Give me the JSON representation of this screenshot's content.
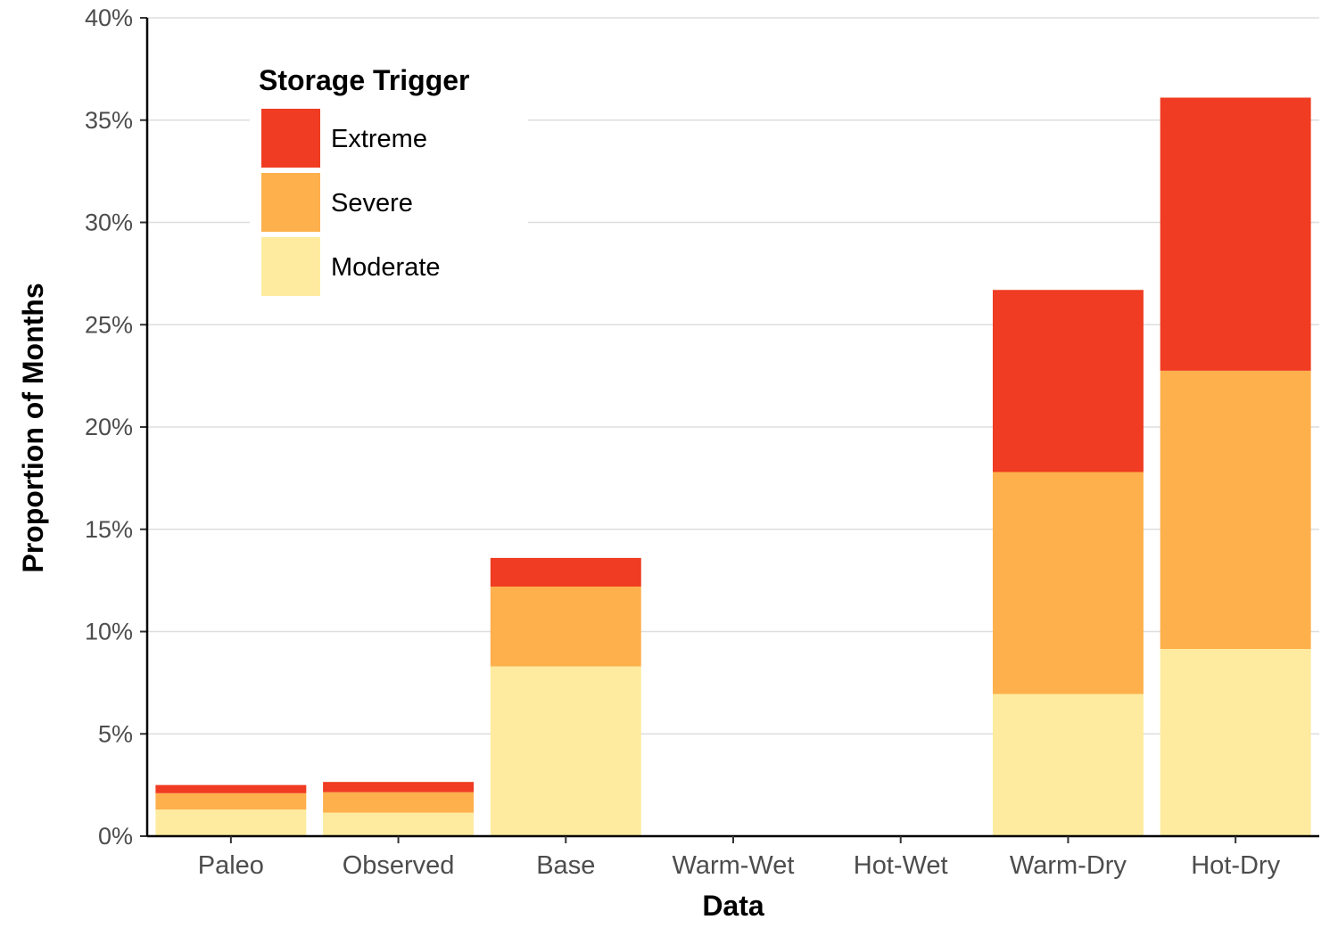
{
  "chart_data": {
    "type": "bar",
    "stacked": true,
    "categories": [
      "Paleo",
      "Observed",
      "Base",
      "Warm-Wet",
      "Hot-Wet",
      "Warm-Dry",
      "Hot-Dry"
    ],
    "series": [
      {
        "name": "Moderate",
        "color": "#FEEB9F",
        "values": [
          1.3,
          1.15,
          8.3,
          0,
          0,
          6.95,
          9.15
        ]
      },
      {
        "name": "Severe",
        "color": "#FDB04C",
        "values": [
          0.8,
          1.0,
          3.9,
          0,
          0,
          10.85,
          13.6
        ]
      },
      {
        "name": "Extreme",
        "color": "#EF3C22",
        "values": [
          0.4,
          0.5,
          1.4,
          0,
          0,
          8.9,
          13.35
        ]
      }
    ],
    "xlabel": "Data",
    "ylabel": "Proportion of Months",
    "ylim": [
      0,
      40
    ],
    "y_ticks": [
      "0%",
      "5%",
      "10%",
      "15%",
      "20%",
      "25%",
      "30%",
      "35%",
      "40%"
    ],
    "grid": "horizontal major",
    "legend": {
      "title": "Storage Trigger",
      "placement": "top-left",
      "order": [
        "Extreme",
        "Severe",
        "Moderate"
      ]
    }
  }
}
